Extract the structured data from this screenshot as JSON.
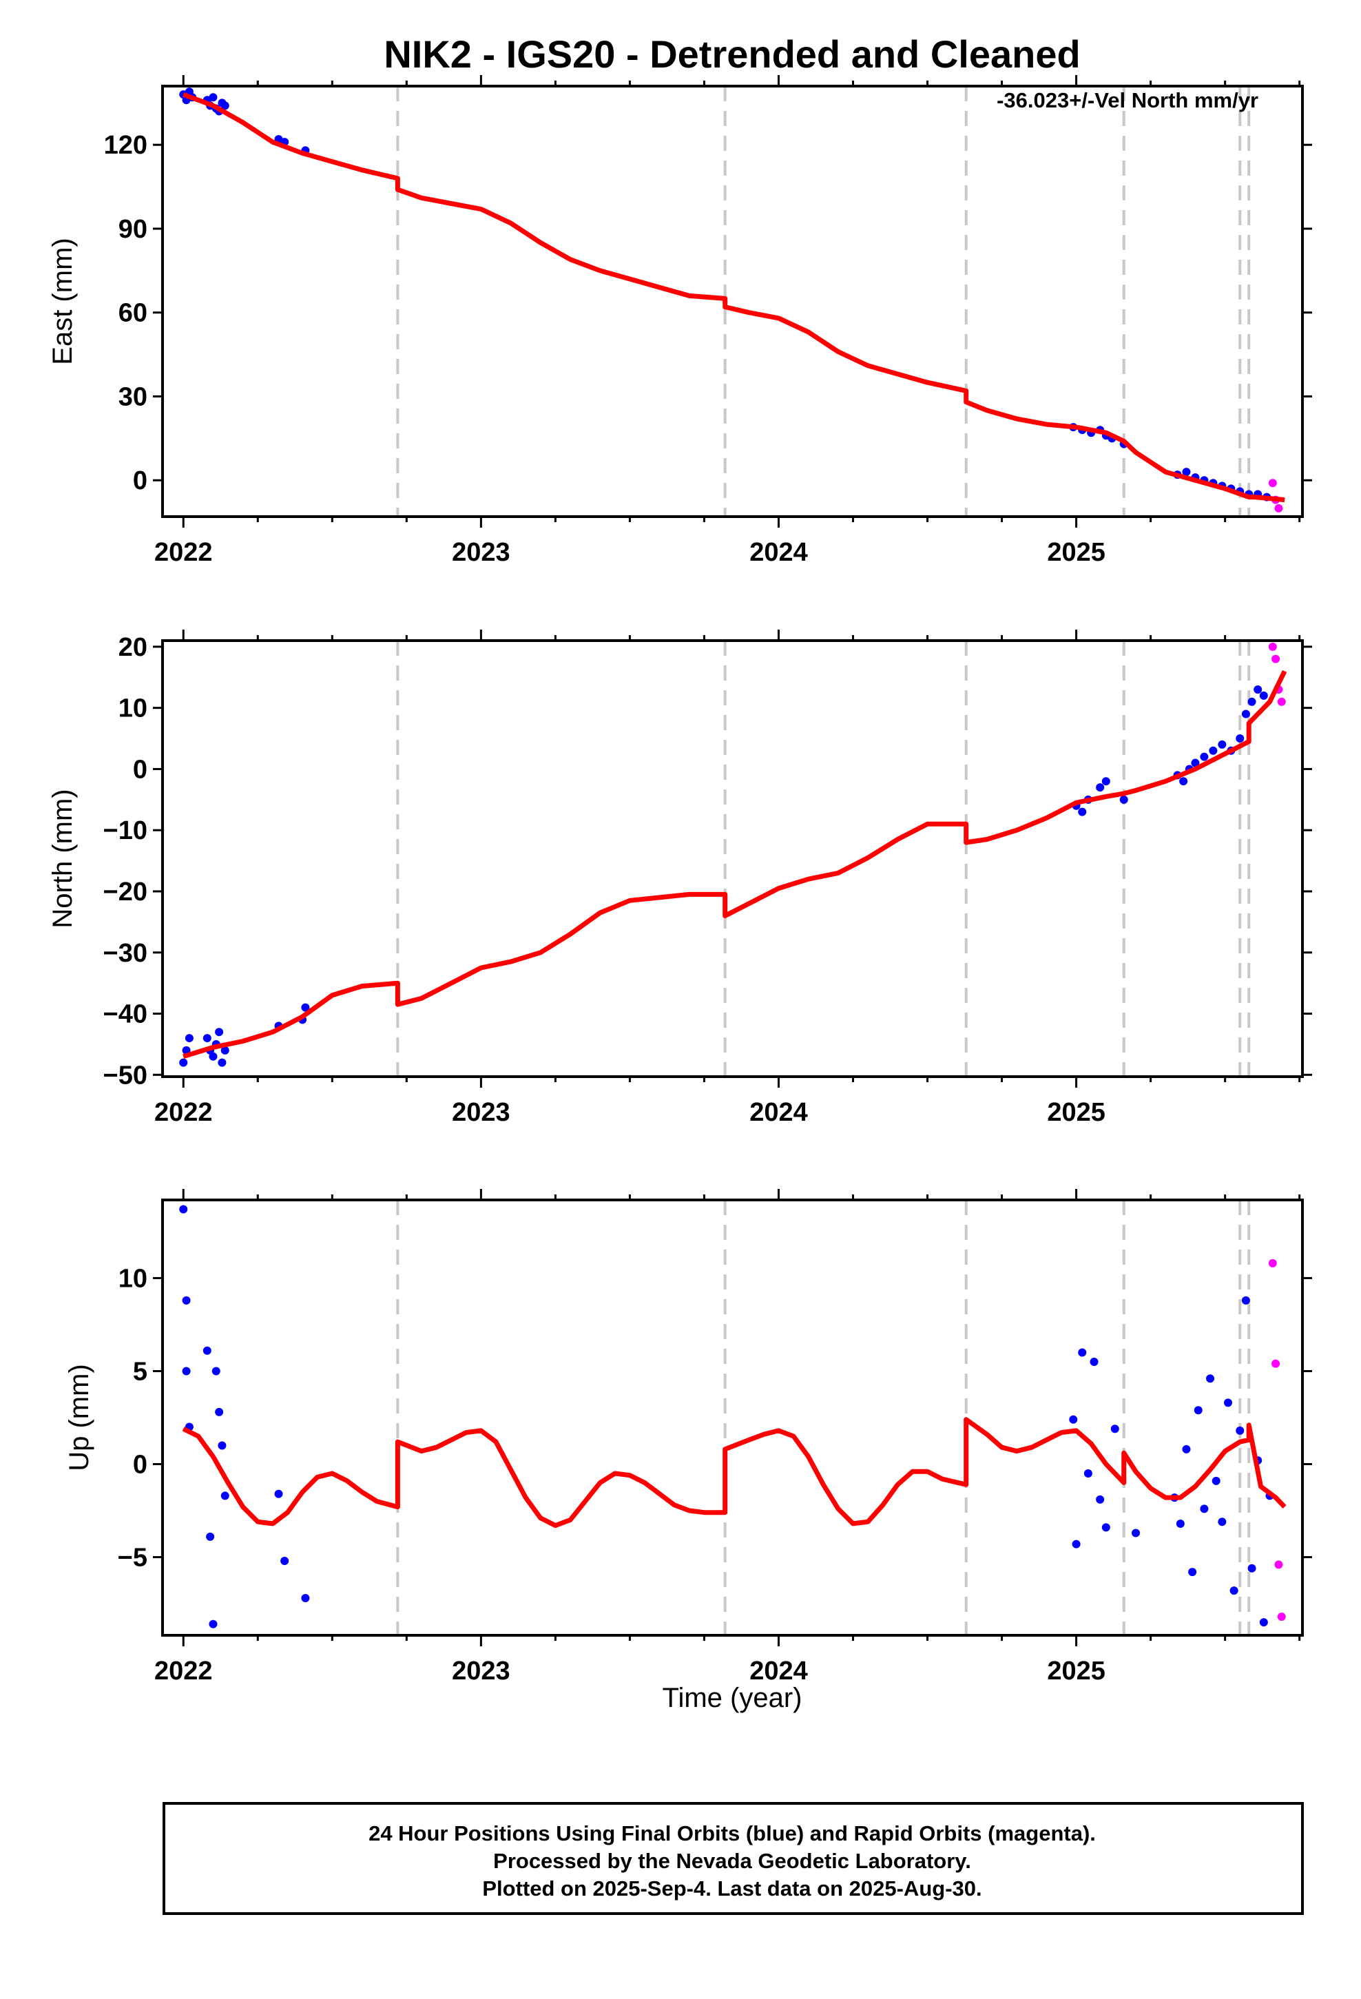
{
  "title": "NIK2 - IGS20 - Detrended and Cleaned",
  "annotation": "-36.023+/-Vel North mm/yr",
  "xlabel": "Time (year)",
  "footer": [
    "24 Hour Positions Using Final Orbits (blue) and Rapid Orbits (magenta).",
    "Processed by the Nevada Geodetic Laboratory.",
    "Plotted on 2025-Sep-4. Last data on 2025-Aug-30."
  ],
  "colors": {
    "final": "#0000ff",
    "rapid": "#ff00ff",
    "model": "#ff0000",
    "steps": "#c8c8c8",
    "axes": "#000000"
  },
  "chart_data": [
    {
      "type": "scatter",
      "panel": "east",
      "ylabel": "East (mm)",
      "xlim": [
        2021.93,
        2025.76
      ],
      "ylim": [
        -13,
        141
      ],
      "xticks": [
        2022,
        2023,
        2024,
        2025
      ],
      "xtick_labels": [
        "2022",
        "2023",
        "2024",
        "2025"
      ],
      "yticks": [
        0,
        30,
        60,
        90,
        120
      ],
      "ytick_labels": [
        "0",
        "30",
        "60",
        "90",
        "120"
      ],
      "step_epochs": [
        2022.72,
        2023.82,
        2024.63,
        2025.16,
        2025.55,
        2025.58
      ],
      "final_x": [
        2022.0,
        2022.01,
        2022.02,
        2022.03,
        2022.08,
        2022.09,
        2022.1,
        2022.11,
        2022.12,
        2022.13,
        2022.14,
        2022.32,
        2022.34,
        2022.41,
        2024.99,
        2025.02,
        2025.05,
        2025.08,
        2025.1,
        2025.12,
        2025.16,
        2025.34,
        2025.37,
        2025.4,
        2025.43,
        2025.46,
        2025.49,
        2025.52,
        2025.55,
        2025.58,
        2025.61,
        2025.64
      ],
      "final_y": [
        138,
        136,
        139,
        137,
        136,
        134,
        137,
        133,
        132,
        135,
        134,
        122,
        121,
        118,
        19,
        18,
        17,
        18,
        16,
        15,
        13,
        2,
        3,
        1,
        0,
        -1,
        -2,
        -3,
        -4,
        -5,
        -5,
        -6
      ],
      "rapid_x": [
        2025.66,
        2025.67,
        2025.68
      ],
      "rapid_y": [
        -1,
        -7,
        -10
      ],
      "model_x": [
        2022.0,
        2022.1,
        2022.2,
        2022.3,
        2022.4,
        2022.5,
        2022.6,
        2022.72,
        2022.72,
        2022.8,
        2022.9,
        2023.0,
        2023.1,
        2023.2,
        2023.3,
        2023.4,
        2023.5,
        2023.6,
        2023.7,
        2023.82,
        2023.82,
        2023.9,
        2024.0,
        2024.1,
        2024.2,
        2024.3,
        2024.4,
        2024.5,
        2024.63,
        2024.63,
        2024.7,
        2024.8,
        2024.9,
        2025.0,
        2025.1,
        2025.16,
        2025.2,
        2025.3,
        2025.4,
        2025.5,
        2025.58,
        2025.6,
        2025.7
      ],
      "model_y": [
        138,
        134,
        128,
        121,
        117,
        114,
        111,
        108,
        104,
        101,
        99,
        97,
        92,
        85,
        79,
        75,
        72,
        69,
        66,
        65,
        62,
        60,
        58,
        53,
        46,
        41,
        38,
        35,
        32,
        28,
        25,
        22,
        20,
        19,
        17,
        14,
        10,
        3,
        0,
        -3,
        -6,
        -6,
        -7
      ]
    },
    {
      "type": "scatter",
      "panel": "north",
      "ylabel": "North (mm)",
      "xlim": [
        2021.93,
        2025.76
      ],
      "ylim": [
        -50.3,
        21
      ],
      "xticks": [
        2022,
        2023,
        2024,
        2025
      ],
      "xtick_labels": [
        "2022",
        "2023",
        "2024",
        "2025"
      ],
      "yticks": [
        -50,
        -40,
        -30,
        -20,
        -10,
        0,
        10,
        20
      ],
      "ytick_labels": [
        "−50",
        "−40",
        "−30",
        "−20",
        "−10",
        "0",
        "10",
        "20"
      ],
      "step_epochs": [
        2022.72,
        2023.82,
        2024.63,
        2025.16,
        2025.55,
        2025.58
      ],
      "final_x": [
        2022.0,
        2022.01,
        2022.02,
        2022.08,
        2022.09,
        2022.1,
        2022.11,
        2022.12,
        2022.13,
        2022.14,
        2022.32,
        2022.4,
        2022.41,
        2025.0,
        2025.02,
        2025.04,
        2025.08,
        2025.1,
        2025.16,
        2025.34,
        2025.36,
        2025.38,
        2025.4,
        2025.43,
        2025.46,
        2025.49,
        2025.52,
        2025.55,
        2025.57,
        2025.59,
        2025.61,
        2025.63
      ],
      "final_y": [
        -48,
        -46,
        -44,
        -44,
        -46,
        -47,
        -45,
        -43,
        -48,
        -46,
        -42,
        -41,
        -39,
        -6,
        -7,
        -5,
        -3,
        -2,
        -5,
        -1,
        -2,
        0,
        1,
        2,
        3,
        4,
        3,
        5,
        9,
        11,
        13,
        12
      ],
      "rapid_x": [
        2025.66,
        2025.67,
        2025.68,
        2025.69
      ],
      "rapid_y": [
        20,
        18,
        13,
        11
      ],
      "model_x": [
        2022.0,
        2022.1,
        2022.2,
        2022.3,
        2022.4,
        2022.5,
        2022.6,
        2022.72,
        2022.72,
        2022.8,
        2022.9,
        2023.0,
        2023.1,
        2023.2,
        2023.3,
        2023.4,
        2023.5,
        2023.6,
        2023.7,
        2023.82,
        2023.82,
        2023.9,
        2024.0,
        2024.1,
        2024.2,
        2024.3,
        2024.4,
        2024.5,
        2024.63,
        2024.63,
        2024.7,
        2024.8,
        2024.9,
        2025.0,
        2025.1,
        2025.16,
        2025.2,
        2025.3,
        2025.4,
        2025.5,
        2025.58,
        2025.58,
        2025.65,
        2025.7
      ],
      "model_y": [
        -47,
        -45.5,
        -44.5,
        -43,
        -40.5,
        -37,
        -35.5,
        -35,
        -38.5,
        -37.5,
        -35,
        -32.5,
        -31.5,
        -30,
        -27,
        -23.5,
        -21.5,
        -21,
        -20.5,
        -20.5,
        -24,
        -22,
        -19.5,
        -18,
        -17,
        -14.5,
        -11.5,
        -9,
        -9,
        -12,
        -11.5,
        -10,
        -8,
        -5.5,
        -4.5,
        -4,
        -3.5,
        -2,
        0,
        2.5,
        4.5,
        7.5,
        11,
        16
      ]
    },
    {
      "type": "scatter",
      "panel": "up",
      "ylabel": "Up (mm)",
      "xlabel": "Time (year)",
      "xlim": [
        2021.93,
        2025.76
      ],
      "ylim": [
        -9.2,
        14.2
      ],
      "xticks": [
        2022,
        2023,
        2024,
        2025
      ],
      "xtick_labels": [
        "2022",
        "2023",
        "2024",
        "2025"
      ],
      "yticks": [
        -5,
        0,
        5,
        10
      ],
      "ytick_labels": [
        "−5",
        "0",
        "5",
        "10"
      ],
      "step_epochs": [
        2022.72,
        2023.82,
        2024.63,
        2025.16,
        2025.55,
        2025.58
      ],
      "final_x": [
        2022.0,
        2022.01,
        2022.01,
        2022.02,
        2022.08,
        2022.09,
        2022.1,
        2022.11,
        2022.12,
        2022.13,
        2022.14,
        2022.32,
        2022.34,
        2022.41,
        2024.99,
        2025.0,
        2025.02,
        2025.04,
        2025.06,
        2025.08,
        2025.1,
        2025.13,
        2025.2,
        2025.33,
        2025.35,
        2025.37,
        2025.39,
        2025.41,
        2025.43,
        2025.45,
        2025.47,
        2025.49,
        2025.51,
        2025.53,
        2025.55,
        2025.57,
        2025.59,
        2025.61,
        2025.63,
        2025.65
      ],
      "final_y": [
        13.7,
        8.8,
        5,
        2,
        6.1,
        -3.9,
        -8.6,
        5,
        2.8,
        1,
        -1.7,
        -1.6,
        -5.2,
        -7.2,
        2.4,
        -4.3,
        6,
        -0.5,
        5.5,
        -1.9,
        -3.4,
        1.9,
        -3.7,
        -1.8,
        -3.2,
        0.8,
        -5.8,
        2.9,
        -2.4,
        4.6,
        -0.9,
        -3.1,
        3.3,
        -6.8,
        1.8,
        8.8,
        -5.6,
        0.2,
        -8.5,
        -1.7
      ],
      "rapid_x": [
        2025.66,
        2025.67,
        2025.68,
        2025.69
      ],
      "rapid_y": [
        10.8,
        5.4,
        -5.4,
        -8.2
      ],
      "model_x": [
        2022.0,
        2022.05,
        2022.1,
        2022.15,
        2022.2,
        2022.25,
        2022.3,
        2022.35,
        2022.4,
        2022.45,
        2022.5,
        2022.55,
        2022.6,
        2022.65,
        2022.72,
        2022.72,
        2022.8,
        2022.85,
        2022.9,
        2022.95,
        2023.0,
        2023.05,
        2023.1,
        2023.15,
        2023.2,
        2023.25,
        2023.3,
        2023.35,
        2023.4,
        2023.45,
        2023.5,
        2023.55,
        2023.6,
        2023.65,
        2023.7,
        2023.75,
        2023.82,
        2023.82,
        2023.9,
        2023.95,
        2024.0,
        2024.05,
        2024.1,
        2024.15,
        2024.2,
        2024.25,
        2024.3,
        2024.35,
        2024.4,
        2024.45,
        2024.5,
        2024.55,
        2024.63,
        2024.63,
        2024.7,
        2024.75,
        2024.8,
        2024.85,
        2024.9,
        2024.95,
        2025.0,
        2025.05,
        2025.1,
        2025.16,
        2025.16,
        2025.2,
        2025.25,
        2025.3,
        2025.35,
        2025.4,
        2025.45,
        2025.5,
        2025.55,
        2025.58,
        2025.58,
        2025.62,
        2025.67,
        2025.7
      ],
      "model_y": [
        1.9,
        1.5,
        0.4,
        -1.0,
        -2.3,
        -3.1,
        -3.2,
        -2.6,
        -1.5,
        -0.7,
        -0.5,
        -0.9,
        -1.5,
        -2.0,
        -2.3,
        1.2,
        0.7,
        0.9,
        1.3,
        1.7,
        1.8,
        1.2,
        -0.3,
        -1.8,
        -2.9,
        -3.3,
        -3.0,
        -2.0,
        -1.0,
        -0.5,
        -0.6,
        -1.0,
        -1.6,
        -2.2,
        -2.5,
        -2.6,
        -2.6,
        0.8,
        1.3,
        1.6,
        1.8,
        1.5,
        0.4,
        -1.1,
        -2.4,
        -3.2,
        -3.1,
        -2.2,
        -1.1,
        -0.4,
        -0.4,
        -0.8,
        -1.1,
        2.4,
        1.6,
        0.9,
        0.7,
        0.9,
        1.3,
        1.7,
        1.8,
        1.1,
        0.0,
        -1.0,
        0.6,
        -0.4,
        -1.3,
        -1.8,
        -1.8,
        -1.2,
        -0.3,
        0.7,
        1.2,
        1.3,
        2.1,
        -1.2,
        -1.8,
        -2.3
      ]
    }
  ]
}
